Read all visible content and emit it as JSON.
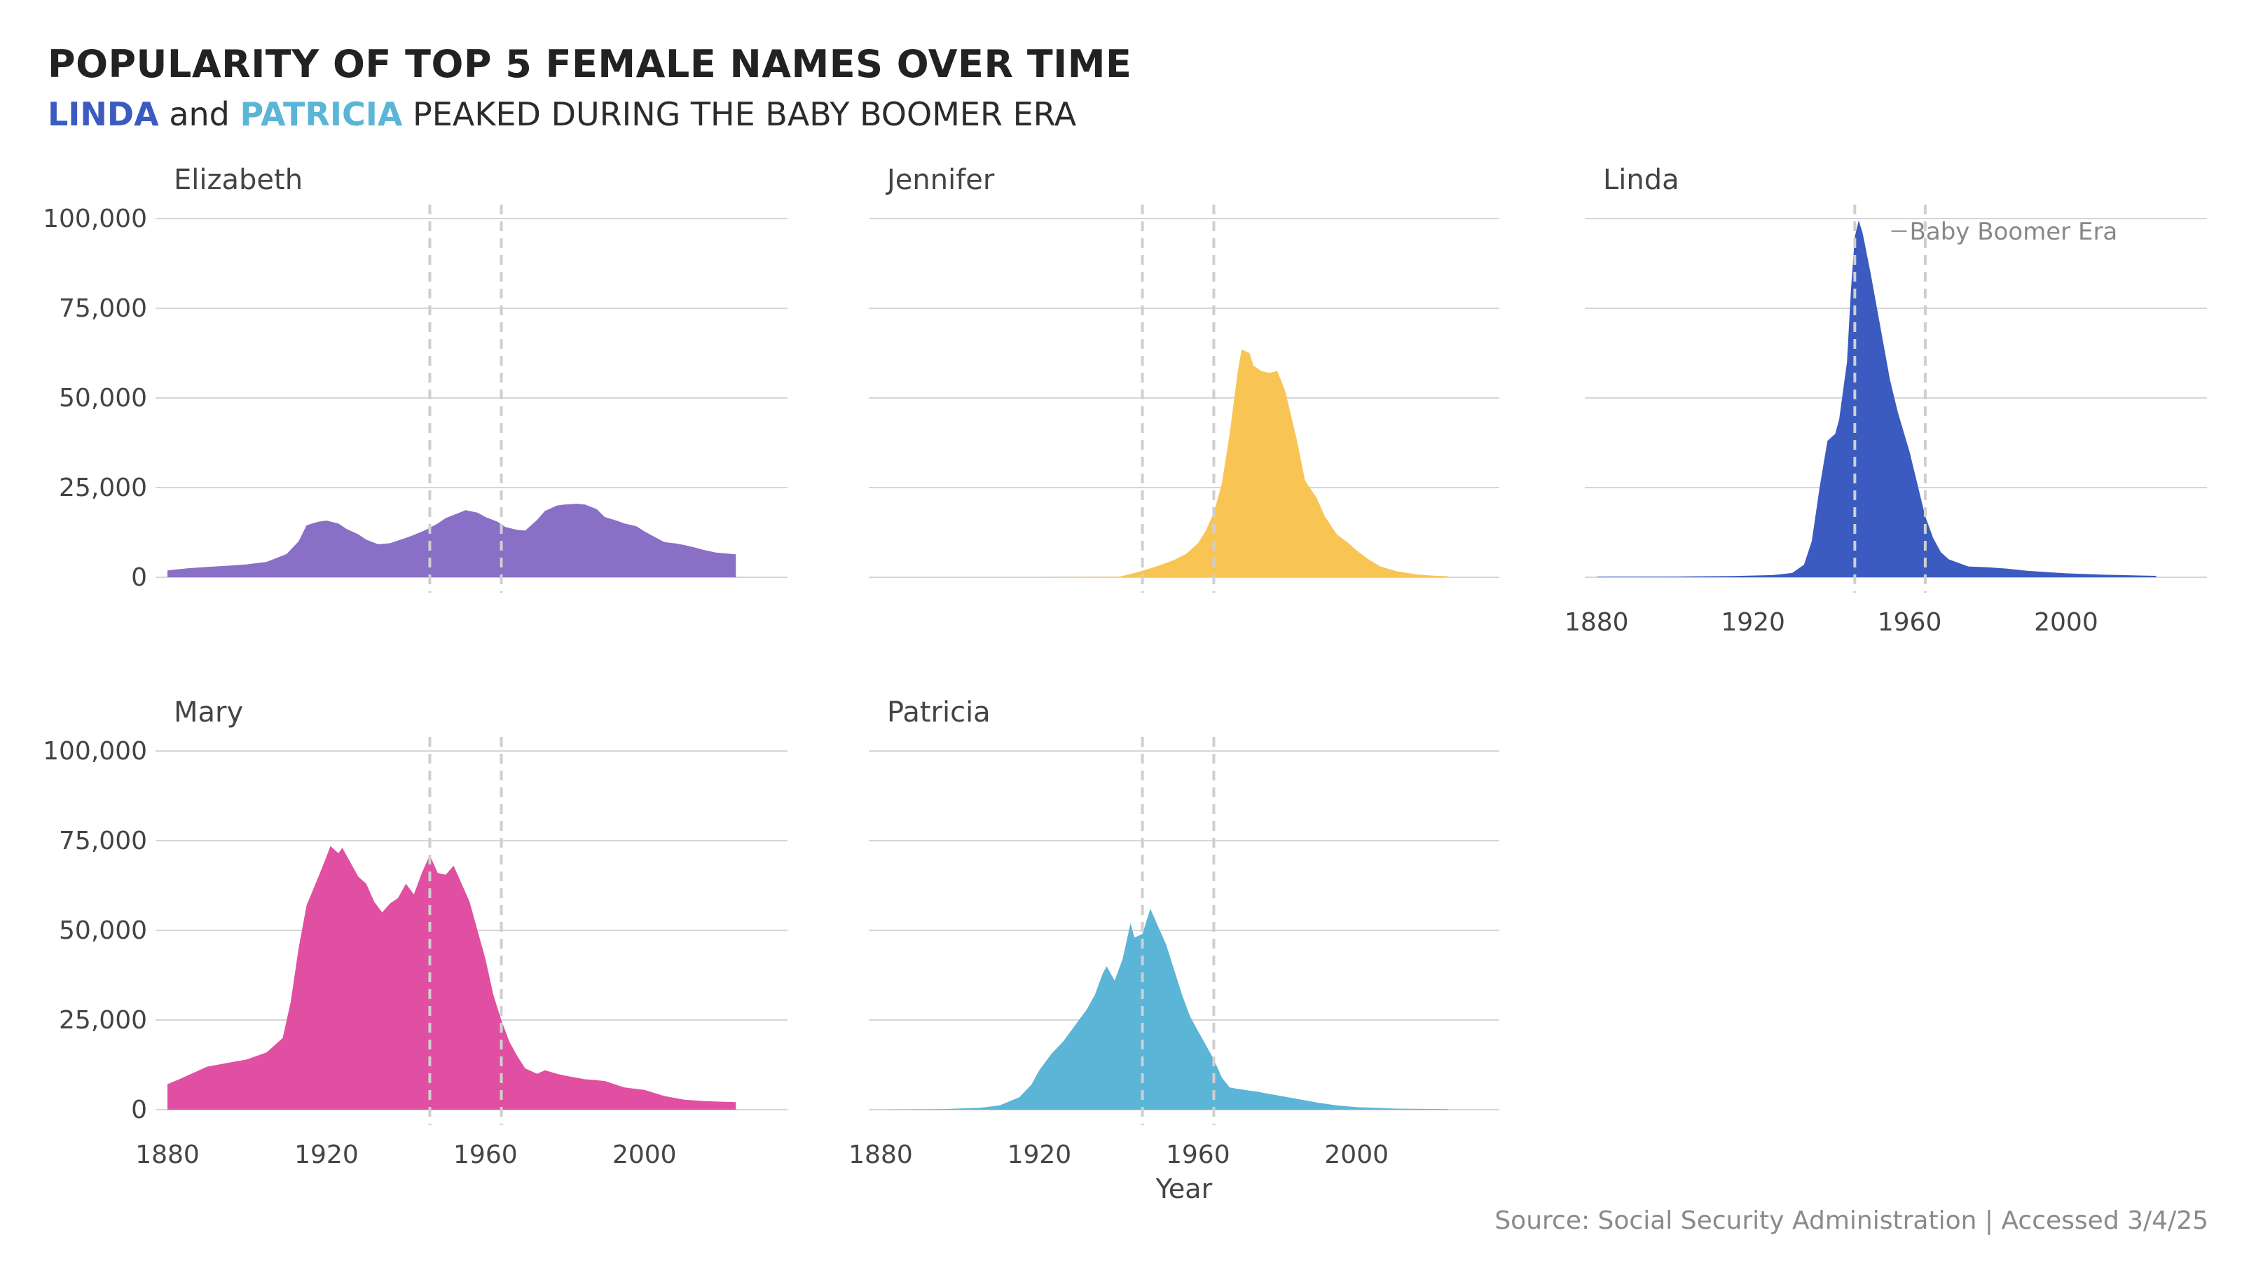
{
  "title": "POPULARITY OF TOP 5 FEMALE NAMES OVER TIME",
  "subtitle": {
    "part1": "LINDA",
    "part2": " and ",
    "part3": "PATRICIA",
    "part4": " PEAKED DURING THE BABY BOOMER ERA"
  },
  "source": "Source: Social Security Administration | Accessed 3/4/25",
  "colors": {
    "linda": "#3b5bc0",
    "patricia": "#5bb5d6",
    "elizabeth": "#8a6fc6",
    "jennifer": "#f8c555",
    "mary": "#e04fa2"
  },
  "chart_data": {
    "type": "area",
    "title": "POPULARITY OF TOP 5 FEMALE NAMES OVER TIME",
    "xlabel": "Year",
    "ylabel": "",
    "xlim": [
      1877,
      2036
    ],
    "ylim": [
      0,
      100000
    ],
    "x_ticks": [
      1880,
      1920,
      1960,
      2000
    ],
    "x_tick_labels": [
      "1880",
      "1920",
      "1960",
      "2000"
    ],
    "y_ticks": [
      0,
      25000,
      50000,
      75000,
      100000
    ],
    "y_tick_labels": [
      "0",
      "25,000",
      "50,000",
      "75,000",
      "100,000"
    ],
    "reference_lines": {
      "label": "Baby Boomer Era",
      "x": [
        1946,
        1964
      ]
    },
    "series": [
      {
        "name": "Elizabeth",
        "color": "#8a6fc6",
        "points": [
          [
            1880,
            1900
          ],
          [
            1885,
            2500
          ],
          [
            1890,
            2900
          ],
          [
            1895,
            3200
          ],
          [
            1900,
            3600
          ],
          [
            1905,
            4300
          ],
          [
            1910,
            6500
          ],
          [
            1913,
            10000
          ],
          [
            1915,
            14500
          ],
          [
            1918,
            15500
          ],
          [
            1920,
            15800
          ],
          [
            1923,
            15000
          ],
          [
            1925,
            13500
          ],
          [
            1928,
            12000
          ],
          [
            1930,
            10500
          ],
          [
            1933,
            9200
          ],
          [
            1936,
            9500
          ],
          [
            1940,
            11000
          ],
          [
            1942,
            11800
          ],
          [
            1945,
            13200
          ],
          [
            1948,
            15000
          ],
          [
            1950,
            16500
          ],
          [
            1953,
            17800
          ],
          [
            1955,
            18700
          ],
          [
            1958,
            18000
          ],
          [
            1960,
            16800
          ],
          [
            1963,
            15500
          ],
          [
            1965,
            14000
          ],
          [
            1968,
            13200
          ],
          [
            1970,
            13000
          ],
          [
            1973,
            16000
          ],
          [
            1975,
            18500
          ],
          [
            1978,
            20000
          ],
          [
            1980,
            20300
          ],
          [
            1983,
            20500
          ],
          [
            1985,
            20300
          ],
          [
            1988,
            19000
          ],
          [
            1990,
            16800
          ],
          [
            1993,
            15800
          ],
          [
            1995,
            15000
          ],
          [
            1998,
            14200
          ],
          [
            2000,
            12800
          ],
          [
            2003,
            11000
          ],
          [
            2005,
            9800
          ],
          [
            2008,
            9400
          ],
          [
            2010,
            9000
          ],
          [
            2013,
            8200
          ],
          [
            2015,
            7600
          ],
          [
            2018,
            6900
          ],
          [
            2023,
            6400
          ]
        ]
      },
      {
        "name": "Jennifer",
        "color": "#f8c555",
        "points": [
          [
            1880,
            0
          ],
          [
            1920,
            0
          ],
          [
            1940,
            120
          ],
          [
            1943,
            900
          ],
          [
            1946,
            1800
          ],
          [
            1950,
            3200
          ],
          [
            1954,
            4800
          ],
          [
            1957,
            6500
          ],
          [
            1960,
            9500
          ],
          [
            1962,
            13000
          ],
          [
            1964,
            18000
          ],
          [
            1966,
            26000
          ],
          [
            1968,
            40000
          ],
          [
            1970,
            57000
          ],
          [
            1971,
            63500
          ],
          [
            1973,
            62500
          ],
          [
            1974,
            59000
          ],
          [
            1976,
            57500
          ],
          [
            1978,
            57000
          ],
          [
            1980,
            57500
          ],
          [
            1982,
            52000
          ],
          [
            1985,
            38000
          ],
          [
            1987,
            27000
          ],
          [
            1990,
            22000
          ],
          [
            1992,
            17000
          ],
          [
            1995,
            12000
          ],
          [
            1998,
            9500
          ],
          [
            2000,
            7500
          ],
          [
            2003,
            5000
          ],
          [
            2006,
            3000
          ],
          [
            2010,
            1700
          ],
          [
            2015,
            800
          ],
          [
            2020,
            400
          ],
          [
            2023,
            300
          ]
        ]
      },
      {
        "name": "Linda",
        "color": "#3b5bc0",
        "points": [
          [
            1880,
            150
          ],
          [
            1900,
            200
          ],
          [
            1915,
            350
          ],
          [
            1925,
            600
          ],
          [
            1930,
            1200
          ],
          [
            1933,
            3500
          ],
          [
            1935,
            10000
          ],
          [
            1937,
            25000
          ],
          [
            1939,
            38000
          ],
          [
            1941,
            40000
          ],
          [
            1942,
            44000
          ],
          [
            1944,
            60000
          ],
          [
            1945,
            80000
          ],
          [
            1946,
            95000
          ],
          [
            1947,
            99500
          ],
          [
            1948,
            96000
          ],
          [
            1950,
            85000
          ],
          [
            1952,
            73000
          ],
          [
            1955,
            55000
          ],
          [
            1957,
            46000
          ],
          [
            1960,
            35000
          ],
          [
            1962,
            26000
          ],
          [
            1964,
            17000
          ],
          [
            1966,
            11000
          ],
          [
            1968,
            7000
          ],
          [
            1970,
            5000
          ],
          [
            1975,
            3000
          ],
          [
            1980,
            2800
          ],
          [
            1985,
            2400
          ],
          [
            1990,
            1800
          ],
          [
            2000,
            1100
          ],
          [
            2010,
            700
          ],
          [
            2023,
            400
          ]
        ]
      },
      {
        "name": "Mary",
        "color": "#e04fa2",
        "points": [
          [
            1880,
            7100
          ],
          [
            1883,
            8500
          ],
          [
            1886,
            10000
          ],
          [
            1890,
            12000
          ],
          [
            1895,
            13000
          ],
          [
            1900,
            14000
          ],
          [
            1905,
            16000
          ],
          [
            1909,
            20000
          ],
          [
            1911,
            30000
          ],
          [
            1913,
            45000
          ],
          [
            1915,
            57000
          ],
          [
            1918,
            65000
          ],
          [
            1920,
            70500
          ],
          [
            1921,
            73500
          ],
          [
            1923,
            71500
          ],
          [
            1924,
            73000
          ],
          [
            1926,
            69000
          ],
          [
            1928,
            65000
          ],
          [
            1930,
            63000
          ],
          [
            1932,
            58000
          ],
          [
            1934,
            55000
          ],
          [
            1936,
            57500
          ],
          [
            1938,
            59000
          ],
          [
            1940,
            63000
          ],
          [
            1942,
            60000
          ],
          [
            1944,
            66000
          ],
          [
            1946,
            71000
          ],
          [
            1948,
            66000
          ],
          [
            1950,
            65500
          ],
          [
            1952,
            68000
          ],
          [
            1954,
            63000
          ],
          [
            1956,
            58000
          ],
          [
            1958,
            50000
          ],
          [
            1960,
            42000
          ],
          [
            1962,
            32000
          ],
          [
            1964,
            25000
          ],
          [
            1966,
            19000
          ],
          [
            1968,
            15000
          ],
          [
            1970,
            11500
          ],
          [
            1973,
            10000
          ],
          [
            1975,
            11000
          ],
          [
            1978,
            10000
          ],
          [
            1980,
            9500
          ],
          [
            1985,
            8500
          ],
          [
            1990,
            8000
          ],
          [
            1995,
            6200
          ],
          [
            2000,
            5500
          ],
          [
            2005,
            3800
          ],
          [
            2010,
            2800
          ],
          [
            2015,
            2400
          ],
          [
            2023,
            2100
          ]
        ]
      },
      {
        "name": "Patricia",
        "color": "#5bb5d6",
        "points": [
          [
            1880,
            0
          ],
          [
            1895,
            150
          ],
          [
            1905,
            500
          ],
          [
            1910,
            1200
          ],
          [
            1915,
            3500
          ],
          [
            1918,
            7000
          ],
          [
            1920,
            11000
          ],
          [
            1923,
            15500
          ],
          [
            1926,
            19000
          ],
          [
            1928,
            22000
          ],
          [
            1930,
            25000
          ],
          [
            1932,
            28000
          ],
          [
            1934,
            32000
          ],
          [
            1936,
            38000
          ],
          [
            1937,
            40000
          ],
          [
            1939,
            36000
          ],
          [
            1941,
            42000
          ],
          [
            1943,
            52000
          ],
          [
            1944,
            48000
          ],
          [
            1946,
            49000
          ],
          [
            1948,
            56000
          ],
          [
            1950,
            51000
          ],
          [
            1952,
            46000
          ],
          [
            1954,
            39000
          ],
          [
            1956,
            32000
          ],
          [
            1958,
            26000
          ],
          [
            1960,
            22000
          ],
          [
            1962,
            18000
          ],
          [
            1964,
            14000
          ],
          [
            1966,
            9000
          ],
          [
            1968,
            6200
          ],
          [
            1970,
            5800
          ],
          [
            1975,
            5000
          ],
          [
            1980,
            4000
          ],
          [
            1985,
            3000
          ],
          [
            1990,
            2000
          ],
          [
            1995,
            1200
          ],
          [
            2000,
            700
          ],
          [
            2010,
            300
          ],
          [
            2023,
            150
          ]
        ]
      }
    ]
  }
}
